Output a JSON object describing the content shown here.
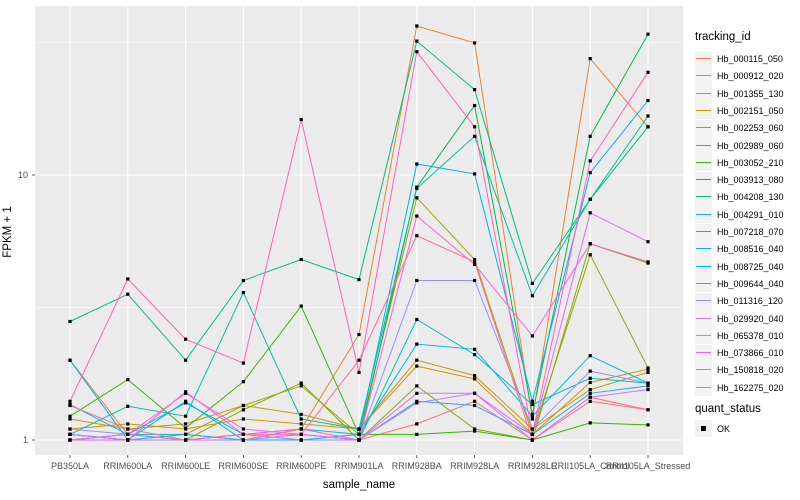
{
  "legend": {
    "title": "tracking_id",
    "quant_title": "quant_status",
    "quant_label": "OK"
  },
  "panel_colors": {
    "background": "#ebebeb",
    "gridline": "#ffffff",
    "tick": "#333333",
    "tick_label": "#4d4d4d"
  },
  "chart_data": {
    "type": "line",
    "title": "",
    "xlabel": "sample_name",
    "ylabel": "FPKM + 1",
    "yscale": "log10",
    "ylim": [
      0.88,
      43
    ],
    "y_ticks": [
      1,
      10
    ],
    "grid": "on",
    "legend_position": "right",
    "marker": {
      "shape": "square",
      "color": "#000000",
      "label": "OK"
    },
    "categories": [
      "PB350LA",
      "RRIM600LA",
      "RRIM600LE",
      "RRIM600SE",
      "RRIM600PE",
      "RRIM901LA",
      "RRIM928BA",
      "RRIM928LA",
      "RRIM928LE",
      "RRII105LA_Control",
      "RRII105LA_Stressed"
    ],
    "series": [
      {
        "name": "Hb_000115_050",
        "color": "#F8766D",
        "values": [
          1.05,
          1.0,
          1.0,
          1.05,
          1.0,
          1.0,
          1.15,
          1.4,
          1.0,
          1.45,
          1.3
        ]
      },
      {
        "name": "Hb_000912_020",
        "color": "#EA8331",
        "values": [
          2.0,
          1.05,
          1.0,
          1.0,
          1.1,
          2.5,
          36.5,
          31.5,
          1.2,
          27.5,
          15.2
        ]
      },
      {
        "name": "Hb_001355_130",
        "color": "#D89000",
        "values": [
          1.1,
          1.15,
          1.1,
          1.2,
          1.15,
          1.1,
          1.9,
          1.7,
          1.05,
          1.65,
          1.85
        ]
      },
      {
        "name": "Hb_002151_050",
        "color": "#C09B00",
        "values": [
          1.2,
          1.1,
          1.15,
          1.35,
          1.25,
          1.1,
          2.0,
          1.75,
          1.1,
          1.55,
          1.8
        ]
      },
      {
        "name": "Hb_002253_060",
        "color": "#A3A500",
        "values": [
          1.0,
          1.0,
          1.05,
          1.35,
          1.6,
          1.05,
          8.2,
          4.8,
          1.05,
          5.0,
          1.87
        ]
      },
      {
        "name": "Hb_002989_060",
        "color": "#7CAE00",
        "values": [
          1.0,
          1.05,
          1.0,
          1.3,
          1.64,
          1.0,
          1.6,
          1.1,
          1.0,
          5.5,
          4.65
        ]
      },
      {
        "name": "Hb_003052_210",
        "color": "#39B600",
        "values": [
          1.23,
          1.69,
          1.11,
          1.66,
          3.2,
          1.05,
          1.05,
          1.08,
          1.0,
          1.16,
          1.14
        ]
      },
      {
        "name": "Hb_003913_080",
        "color": "#00BB4E",
        "values": [
          1.05,
          1.0,
          1.0,
          1.0,
          1.0,
          1.0,
          9.0,
          18.3,
          1.25,
          14.0,
          34.0
        ]
      },
      {
        "name": "Hb_004208_130",
        "color": "#00BF7D",
        "values": [
          2.8,
          3.55,
          2.0,
          4.0,
          4.8,
          4.03,
          32.0,
          21.0,
          3.9,
          8.1,
          15.2
        ]
      },
      {
        "name": "Hb_004291_010",
        "color": "#00C1A3",
        "values": [
          1.05,
          1.34,
          1.23,
          3.6,
          1.2,
          1.1,
          8.9,
          14.0,
          3.5,
          8.1,
          16.7
        ]
      },
      {
        "name": "Hb_007218_070",
        "color": "#00BFC4",
        "values": [
          1.0,
          1.05,
          1.05,
          1.0,
          1.05,
          1.0,
          2.85,
          2.1,
          1.36,
          1.71,
          1.64
        ]
      },
      {
        "name": "Hb_008516_040",
        "color": "#00BAE0",
        "values": [
          1.36,
          1.05,
          1.38,
          1.05,
          1.1,
          1.05,
          2.3,
          2.2,
          1.23,
          2.08,
          1.64
        ]
      },
      {
        "name": "Hb_008725_040",
        "color": "#00B0F6",
        "values": [
          2.0,
          1.0,
          1.4,
          1.0,
          1.0,
          1.05,
          11.0,
          10.1,
          1.4,
          10.2,
          19.1
        ]
      },
      {
        "name": "Hb_009644_040",
        "color": "#35A2FF",
        "values": [
          1.05,
          1.0,
          1.05,
          1.0,
          1.0,
          1.0,
          1.4,
          1.35,
          1.05,
          1.5,
          1.6
        ]
      },
      {
        "name": "Hb_011316_120",
        "color": "#9590FF",
        "values": [
          1.1,
          1.05,
          1.0,
          1.05,
          1.0,
          1.0,
          4.0,
          4.0,
          1.1,
          1.82,
          1.64
        ]
      },
      {
        "name": "Hb_029920_040",
        "color": "#C77CFF",
        "values": [
          1.05,
          1.0,
          1.0,
          1.0,
          1.05,
          1.0,
          1.38,
          1.5,
          1.0,
          1.45,
          1.55
        ]
      },
      {
        "name": "Hb_065378_010",
        "color": "#E76BF3",
        "values": [
          1.0,
          1.05,
          1.5,
          1.1,
          1.05,
          1.0,
          1.5,
          1.5,
          1.05,
          7.2,
          5.6
        ]
      },
      {
        "name": "Hb_073866_010",
        "color": "#FA62DB",
        "values": [
          1.0,
          1.0,
          1.52,
          1.05,
          1.1,
          1.0,
          7.0,
          4.6,
          2.47,
          5.5,
          4.7
        ]
      },
      {
        "name": "Hb_150818_020",
        "color": "#FF62BC",
        "values": [
          1.4,
          4.05,
          2.4,
          1.95,
          16.2,
          1.8,
          29.2,
          15.2,
          1.05,
          11.3,
          24.4
        ]
      },
      {
        "name": "Hb_162275_020",
        "color": "#FF6A98",
        "values": [
          1.35,
          1.1,
          1.0,
          1.05,
          1.05,
          2.0,
          5.9,
          4.7,
          1.0,
          1.4,
          1.3
        ]
      }
    ]
  }
}
